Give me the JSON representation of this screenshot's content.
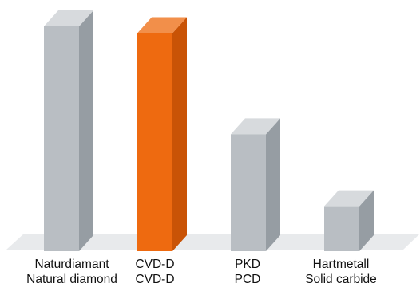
{
  "chart_data": {
    "type": "bar",
    "title": "",
    "xlabel": "",
    "ylabel": "",
    "ylim": [
      0,
      100
    ],
    "categories": [
      {
        "label": "Naturdiamant",
        "sublabel": "Natural diamond"
      },
      {
        "label": "CVD-D",
        "sublabel": "CVD-D"
      },
      {
        "label": "PKD",
        "sublabel": "PCD"
      },
      {
        "label": "Hartmetall",
        "sublabel": "Solid carbide"
      }
    ],
    "values": [
      100,
      97,
      52,
      20
    ],
    "highlight_index": 1,
    "colors": {
      "bar_front": "#b9bec3",
      "bar_side": "#969da3",
      "bar_top": "#d7dadd",
      "highlight_front": "#ee6a10",
      "highlight_side": "#c95306",
      "highlight_top": "#f28f4a",
      "floor": "#e8eaec"
    }
  }
}
